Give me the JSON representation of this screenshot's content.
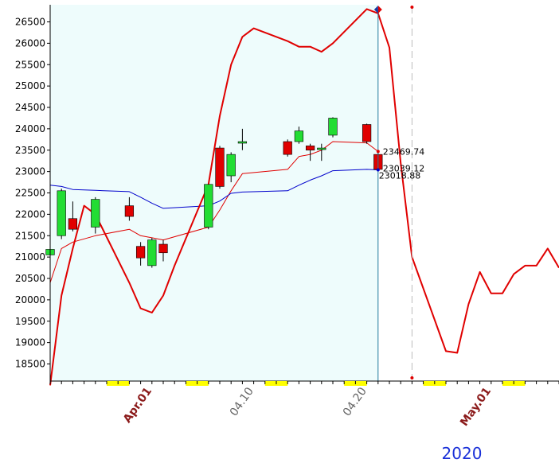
{
  "chart_data": {
    "type": "candlestick",
    "y_ticks": [
      18500,
      19000,
      19500,
      20000,
      20500,
      21000,
      21500,
      22000,
      22500,
      23000,
      23500,
      24000,
      24500,
      25000,
      25500,
      26000,
      26500
    ],
    "ylim": [
      18100,
      26900
    ],
    "x_domain": [
      "2020-03-23",
      "2020-05-07"
    ],
    "last_candle_date": "2020-04-21",
    "projection_end_date": "2020-04-24",
    "candles": [
      {
        "date": "2020-03-23",
        "open": 21050,
        "high": 21180,
        "low": 21020,
        "close": 21180
      },
      {
        "date": "2020-03-24",
        "open": 21500,
        "high": 22600,
        "low": 21420,
        "close": 22550
      },
      {
        "date": "2020-03-25",
        "open": 21900,
        "high": 22300,
        "low": 21600,
        "close": 21650
      },
      {
        "date": "2020-03-27",
        "open": 21700,
        "high": 22400,
        "low": 21550,
        "close": 22350
      },
      {
        "date": "2020-03-30",
        "open": 22200,
        "high": 22400,
        "low": 21850,
        "close": 21950
      },
      {
        "date": "2020-03-31",
        "open": 21250,
        "high": 21350,
        "low": 20800,
        "close": 20980
      },
      {
        "date": "2020-04-01",
        "open": 20800,
        "high": 21450,
        "low": 20750,
        "close": 21400
      },
      {
        "date": "2020-04-02",
        "open": 21300,
        "high": 21400,
        "low": 20900,
        "close": 21100
      },
      {
        "date": "2020-04-06",
        "open": 21700,
        "high": 22700,
        "low": 21650,
        "close": 22700
      },
      {
        "date": "2020-04-07",
        "open": 23550,
        "high": 23600,
        "low": 22600,
        "close": 22650
      },
      {
        "date": "2020-04-08",
        "open": 22900,
        "high": 23450,
        "low": 22750,
        "close": 23400
      },
      {
        "date": "2020-04-09",
        "open": 23700,
        "high": 24000,
        "low": 23500,
        "close": 23700
      },
      {
        "date": "2020-04-13",
        "open": 23700,
        "high": 23750,
        "low": 23350,
        "close": 23400
      },
      {
        "date": "2020-04-14",
        "open": 23700,
        "high": 24050,
        "low": 23650,
        "close": 23950
      },
      {
        "date": "2020-04-15",
        "open": 23600,
        "high": 23650,
        "low": 23250,
        "close": 23500
      },
      {
        "date": "2020-04-16",
        "open": 23550,
        "high": 23650,
        "low": 23250,
        "close": 23550
      },
      {
        "date": "2020-04-17",
        "open": 23850,
        "high": 24270,
        "low": 23800,
        "close": 24250
      },
      {
        "date": "2020-04-20",
        "open": 24100,
        "high": 24120,
        "low": 23650,
        "close": 23700
      },
      {
        "date": "2020-04-21",
        "open": 23400,
        "high": 23450,
        "low": 23000,
        "close": 23050
      }
    ],
    "series": [
      {
        "color": "#e00000",
        "points": [
          {
            "date": "2020-03-23",
            "value": 20400
          },
          {
            "date": "2020-03-24",
            "value": 21200
          },
          {
            "date": "2020-03-25",
            "value": 21350
          },
          {
            "date": "2020-03-27",
            "value": 21500
          },
          {
            "date": "2020-03-30",
            "value": 21650
          },
          {
            "date": "2020-03-31",
            "value": 21500
          },
          {
            "date": "2020-04-01",
            "value": 21450
          },
          {
            "date": "2020-04-02",
            "value": 21400
          },
          {
            "date": "2020-04-06",
            "value": 21700
          },
          {
            "date": "2020-04-07",
            "value": 22100
          },
          {
            "date": "2020-04-08",
            "value": 22550
          },
          {
            "date": "2020-04-09",
            "value": 22950
          },
          {
            "date": "2020-04-13",
            "value": 23050
          },
          {
            "date": "2020-04-14",
            "value": 23350
          },
          {
            "date": "2020-04-15",
            "value": 23400
          },
          {
            "date": "2020-04-16",
            "value": 23500
          },
          {
            "date": "2020-04-17",
            "value": 23700
          },
          {
            "date": "2020-04-20",
            "value": 23670
          },
          {
            "date": "2020-04-21",
            "value": 23469.74
          }
        ]
      },
      {
        "color": "#0000cc",
        "points": [
          {
            "date": "2020-03-23",
            "value": 22680
          },
          {
            "date": "2020-03-24",
            "value": 22650
          },
          {
            "date": "2020-03-25",
            "value": 22580
          },
          {
            "date": "2020-03-27",
            "value": 22560
          },
          {
            "date": "2020-03-30",
            "value": 22530
          },
          {
            "date": "2020-03-31",
            "value": 22400
          },
          {
            "date": "2020-04-01",
            "value": 22260
          },
          {
            "date": "2020-04-02",
            "value": 22140
          },
          {
            "date": "2020-04-06",
            "value": 22200
          },
          {
            "date": "2020-04-07",
            "value": 22310
          },
          {
            "date": "2020-04-08",
            "value": 22490
          },
          {
            "date": "2020-04-09",
            "value": 22520
          },
          {
            "date": "2020-04-13",
            "value": 22550
          },
          {
            "date": "2020-04-14",
            "value": 22680
          },
          {
            "date": "2020-04-15",
            "value": 22800
          },
          {
            "date": "2020-04-16",
            "value": 22900
          },
          {
            "date": "2020-04-17",
            "value": 23020
          },
          {
            "date": "2020-04-20",
            "value": 23050
          },
          {
            "date": "2020-04-21",
            "value": 23039.12
          }
        ]
      },
      {
        "color": "#e00000",
        "points": [
          {
            "date": "2020-03-23",
            "value": 18000
          },
          {
            "date": "2020-03-24",
            "value": 20100
          },
          {
            "date": "2020-03-25",
            "value": 21200
          },
          {
            "date": "2020-03-26",
            "value": 22200
          },
          {
            "date": "2020-03-27",
            "value": 22000
          },
          {
            "date": "2020-03-30",
            "value": 20400
          },
          {
            "date": "2020-03-31",
            "value": 19800
          },
          {
            "date": "2020-04-01",
            "value": 19700
          },
          {
            "date": "2020-04-02",
            "value": 20100
          },
          {
            "date": "2020-04-03",
            "value": 20800
          },
          {
            "date": "2020-04-06",
            "value": 22700
          },
          {
            "date": "2020-04-07",
            "value": 24300
          },
          {
            "date": "2020-04-08",
            "value": 25500
          },
          {
            "date": "2020-04-09",
            "value": 26150
          },
          {
            "date": "2020-04-10",
            "value": 26350
          },
          {
            "date": "2020-04-13",
            "value": 26050
          },
          {
            "date": "2020-04-14",
            "value": 25920
          },
          {
            "date": "2020-04-15",
            "value": 25920
          },
          {
            "date": "2020-04-16",
            "value": 25800
          },
          {
            "date": "2020-04-17",
            "value": 26000
          },
          {
            "date": "2020-04-20",
            "value": 26800
          },
          {
            "date": "2020-04-21",
            "value": 26700
          },
          {
            "date": "2020-04-22",
            "value": 25900
          },
          {
            "date": "2020-04-23",
            "value": 23200
          },
          {
            "date": "2020-04-24",
            "value": 21000
          },
          {
            "date": "2020-04-27",
            "value": 18800
          },
          {
            "date": "2020-04-28",
            "value": 18760
          },
          {
            "date": "2020-04-29",
            "value": 19900
          },
          {
            "date": "2020-04-30",
            "value": 20650
          },
          {
            "date": "2020-05-01",
            "value": 20150
          },
          {
            "date": "2020-05-02",
            "value": 20150
          },
          {
            "date": "2020-05-03",
            "value": 20600
          },
          {
            "date": "2020-05-04",
            "value": 20800
          },
          {
            "date": "2020-05-05",
            "value": 20800
          },
          {
            "date": "2020-05-06",
            "value": 21200
          },
          {
            "date": "2020-05-07",
            "value": 20750
          }
        ]
      }
    ],
    "price_labels": [
      "23469.74",
      "23039.12",
      "23018.88"
    ],
    "x_ticks": [
      {
        "label": "Apr.01",
        "date": "2020-04-01",
        "color": "#8b1a1a",
        "bold": true
      },
      {
        "label": "04.10",
        "date": "2020-04-10",
        "color": "#666666",
        "bold": false
      },
      {
        "label": "04.20",
        "date": "2020-04-20",
        "color": "#666666",
        "bold": false
      },
      {
        "label": "May.01",
        "date": "2020-05-01",
        "color": "#8b1a1a",
        "bold": true
      }
    ],
    "weekend_date_ranges": [
      [
        "2020-03-28",
        "2020-03-30"
      ],
      [
        "2020-04-04",
        "2020-04-06"
      ],
      [
        "2020-04-11",
        "2020-04-13"
      ],
      [
        "2020-04-18",
        "2020-04-20"
      ],
      [
        "2020-04-25",
        "2020-04-27"
      ],
      [
        "2020-05-02",
        "2020-05-04"
      ]
    ],
    "year_label": "2020",
    "colors": {
      "up": "#22dd33",
      "down": "#e00000",
      "shaded_area": "#eefcfc",
      "weekend": "#ffff00",
      "cursor_line": "#1f7a9c"
    }
  }
}
